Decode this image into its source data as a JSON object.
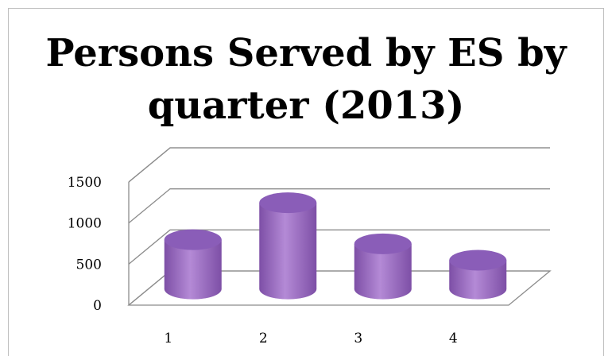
{
  "chart_data": {
    "type": "bar",
    "style": "3d-cylinder",
    "title_lines": [
      "Persons Served by ES by",
      "quarter (2013)"
    ],
    "categories": [
      "1",
      "2",
      "3",
      "4"
    ],
    "values": [
      600,
      1050,
      550,
      350
    ],
    "ylim": [
      0,
      1500
    ],
    "y_ticks": [
      "0",
      "500",
      "1000",
      "1500"
    ],
    "grid": true,
    "legend": "none",
    "colors": {
      "bar_light": "#b48ad6",
      "bar_mid": "#9b6cc4",
      "bar_dark": "#7d4fa6",
      "bar_top": "#8a5db8",
      "grid": "#8c8c8c"
    }
  }
}
